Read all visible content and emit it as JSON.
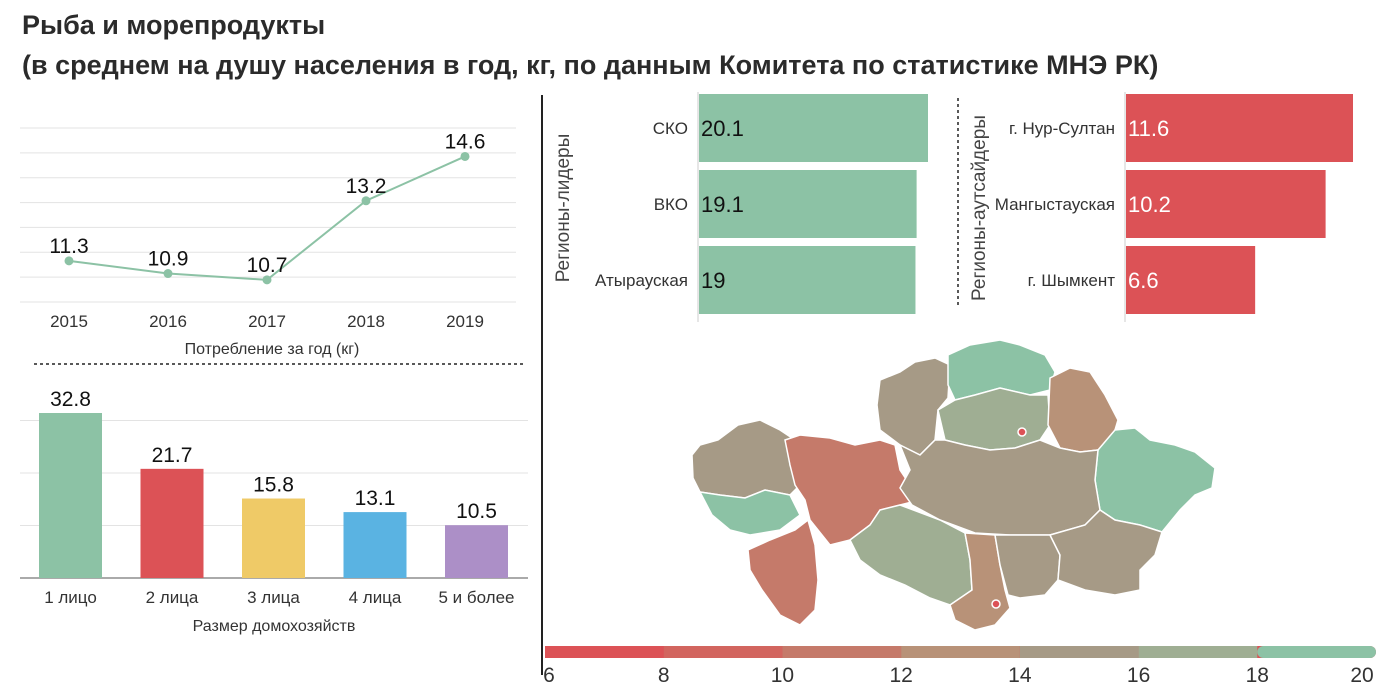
{
  "title_line1": "Рыба и морепродукты",
  "title_line2": "(в среднем на душу населения в год, кг, по данным Комитета по статистике МНЭ РК)",
  "chart_data": [
    {
      "type": "line",
      "xlabel": "Потребление за год (кг)",
      "x": [
        "2015",
        "2016",
        "2017",
        "2018",
        "2019"
      ],
      "values": [
        11.3,
        10.9,
        10.7,
        13.2,
        14.6
      ],
      "value_labels": [
        "11.3",
        "10.9",
        "10.7",
        "13.2",
        "14.6"
      ],
      "ylim": [
        10,
        15.5
      ],
      "grid": true,
      "color": "#8cc2a5"
    },
    {
      "type": "bar",
      "xlabel": "Размер домохозяйств",
      "categories": [
        "1 лицо",
        "2 лица",
        "3 лица",
        "4 лица",
        "5 и более"
      ],
      "values": [
        32.8,
        21.7,
        15.8,
        13.1,
        10.5
      ],
      "value_labels": [
        "32.8",
        "21.7",
        "15.8",
        "13.1",
        "10.5"
      ],
      "colors": [
        "#8cc2a5",
        "#dc5256",
        "#efca67",
        "#5ab3e2",
        "#ac8fc7"
      ],
      "ylim": [
        0,
        35
      ],
      "grid": true
    },
    {
      "type": "bar",
      "orientation": "horizontal",
      "group_label": "Регионы-лидеры",
      "categories": [
        "СКО",
        "ВКО",
        "Атырауская"
      ],
      "values": [
        20.1,
        19.1,
        19
      ],
      "value_labels": [
        "20.1",
        "19.1",
        "19"
      ],
      "color": "#8cc2a5",
      "xlim": [
        0,
        20.1
      ]
    },
    {
      "type": "bar",
      "orientation": "horizontal",
      "group_label": "Регионы-аутсайдеры",
      "categories": [
        "г. Нур-Султан",
        "Мангыстауская",
        "г. Шымкент"
      ],
      "values": [
        11.6,
        10.2,
        6.6
      ],
      "value_labels": [
        "11.6",
        "10.2",
        "6.6"
      ],
      "color": "#dc5256",
      "xlim": [
        0,
        11.6
      ]
    },
    {
      "type": "heatmap",
      "subtype": "choropleth",
      "color_scale": {
        "ticks": [
          "6",
          "8",
          "10",
          "12",
          "14",
          "16",
          "18",
          "20"
        ],
        "colors": [
          "#dc5256",
          "#d2655f",
          "#c57a6a",
          "#b89278",
          "#a69a86",
          "#9fae93",
          "#8cc2a5"
        ]
      }
    }
  ]
}
